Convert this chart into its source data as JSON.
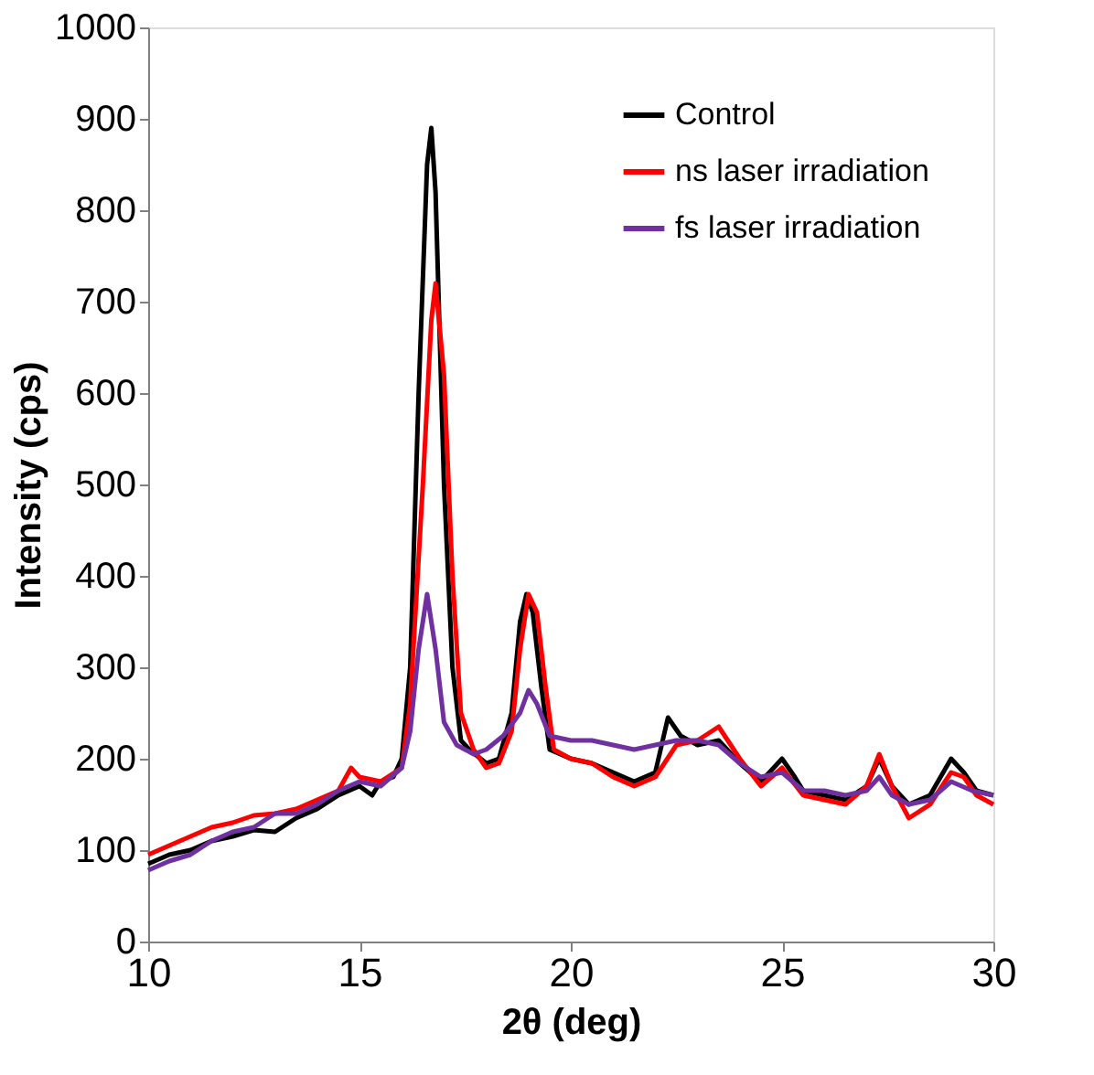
{
  "chart_data": {
    "type": "line",
    "xlabel": "2θ (deg)",
    "ylabel": "Intensity (cps)",
    "xlim": [
      10,
      30
    ],
    "xticks": [
      10,
      15,
      20,
      25,
      30
    ],
    "ylim": [
      0,
      1000
    ],
    "yticks": [
      0,
      100,
      200,
      300,
      400,
      500,
      600,
      700,
      800,
      900,
      1000
    ],
    "grid": false,
    "legend": "top right",
    "marker": "none",
    "line_style": "solid",
    "series": [
      {
        "name": "Control",
        "color": "#000000",
        "x": [
          10,
          10.5,
          11,
          11.5,
          12,
          12.5,
          13,
          13.5,
          14,
          14.5,
          15,
          15.3,
          15.5,
          15.8,
          16,
          16.2,
          16.4,
          16.6,
          16.7,
          16.8,
          17,
          17.2,
          17.4,
          17.6,
          18,
          18.3,
          18.6,
          18.8,
          18.95,
          19.1,
          19.3,
          19.5,
          20,
          20.5,
          21,
          21.5,
          22,
          22.3,
          22.6,
          23,
          23.5,
          24,
          24.5,
          25,
          25.3,
          25.5,
          26,
          26.5,
          27,
          27.3,
          27.6,
          28,
          28.5,
          29,
          29.3,
          29.6,
          30
        ],
        "values": [
          85,
          95,
          100,
          110,
          115,
          122,
          120,
          135,
          145,
          160,
          170,
          160,
          175,
          180,
          200,
          300,
          600,
          850,
          890,
          820,
          500,
          300,
          220,
          210,
          195,
          200,
          250,
          350,
          380,
          360,
          280,
          210,
          200,
          195,
          185,
          175,
          185,
          245,
          225,
          215,
          220,
          195,
          175,
          200,
          180,
          165,
          160,
          155,
          170,
          200,
          170,
          150,
          160,
          200,
          185,
          165,
          160
        ]
      },
      {
        "name": "ns laser irradiation",
        "color": "#ff0000",
        "x": [
          10,
          10.5,
          11,
          11.5,
          12,
          12.5,
          13,
          13.5,
          14,
          14.5,
          14.8,
          15,
          15.5,
          16,
          16.2,
          16.5,
          16.7,
          16.8,
          17,
          17.2,
          17.4,
          17.7,
          18,
          18.3,
          18.6,
          18.8,
          19,
          19.2,
          19.4,
          19.6,
          20,
          20.5,
          21,
          21.5,
          22,
          22.5,
          23,
          23.5,
          24,
          24.5,
          25,
          25.5,
          26,
          26.5,
          27,
          27.3,
          27.6,
          28,
          28.5,
          29,
          29.3,
          29.6,
          30
        ],
        "values": [
          95,
          105,
          115,
          125,
          130,
          138,
          140,
          145,
          155,
          165,
          190,
          180,
          175,
          190,
          260,
          500,
          680,
          720,
          620,
          400,
          250,
          210,
          190,
          195,
          230,
          320,
          380,
          360,
          280,
          210,
          200,
          195,
          180,
          170,
          180,
          215,
          220,
          235,
          200,
          170,
          190,
          160,
          155,
          150,
          170,
          205,
          170,
          135,
          150,
          185,
          180,
          160,
          150
        ]
      },
      {
        "name": "fs laser irradiation",
        "color": "#7030a0",
        "x": [
          10,
          10.5,
          11,
          11.5,
          12,
          12.5,
          13,
          13.5,
          14,
          14.5,
          15,
          15.5,
          16,
          16.2,
          16.4,
          16.6,
          16.8,
          17,
          17.3,
          17.7,
          18,
          18.4,
          18.8,
          19,
          19.2,
          19.5,
          20,
          20.5,
          21,
          21.5,
          22,
          22.5,
          23,
          23.5,
          24,
          24.5,
          25,
          25.5,
          26,
          26.5,
          27,
          27.3,
          27.6,
          28,
          28.5,
          29,
          29.5,
          30
        ],
        "values": [
          78,
          88,
          95,
          110,
          120,
          125,
          140,
          140,
          150,
          165,
          175,
          170,
          190,
          230,
          320,
          380,
          320,
          240,
          215,
          205,
          210,
          225,
          250,
          275,
          260,
          225,
          220,
          220,
          215,
          210,
          215,
          220,
          220,
          215,
          195,
          180,
          185,
          165,
          165,
          160,
          165,
          180,
          160,
          150,
          155,
          175,
          165,
          160
        ]
      }
    ]
  }
}
